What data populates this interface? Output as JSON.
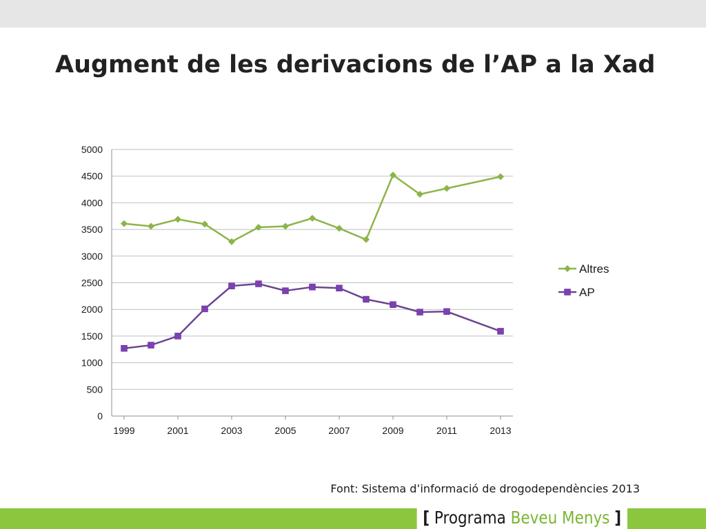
{
  "slide": {
    "title": "Augment de les derivacions de l’AP a la Xad",
    "source": "Font: Sistema d’informació de drogodependències 2013"
  },
  "logo": {
    "open_bracket": "[",
    "word1": "Programa",
    "word2": "Beveu Menys",
    "close_bracket": "]"
  },
  "colors": {
    "top_band": "#e6e6e6",
    "bottom_band": "#8cc63f",
    "altres": "#8db449",
    "ap": "#6b4594",
    "ap_marker": "#7e3fb5"
  },
  "chart_data": {
    "type": "line",
    "x": [
      1999,
      2000,
      2001,
      2002,
      2003,
      2004,
      2005,
      2006,
      2007,
      2008,
      2009,
      2010,
      2011,
      2013
    ],
    "x_ticks": [
      "1999",
      "2001",
      "2003",
      "2005",
      "2007",
      "2009",
      "2011",
      "2013"
    ],
    "y_ticks": [
      "0",
      "500",
      "1000",
      "1500",
      "2000",
      "2500",
      "3000",
      "3500",
      "4000",
      "4500",
      "5000"
    ],
    "ylim": [
      0,
      5000
    ],
    "grid": true,
    "legend_position": "right",
    "series": [
      {
        "name": "Altres",
        "marker": "diamond",
        "values": [
          3610,
          3560,
          3690,
          3600,
          3270,
          3540,
          3560,
          3710,
          3520,
          3310,
          4520,
          4160,
          4270,
          4490
        ]
      },
      {
        "name": "AP",
        "marker": "square",
        "values": [
          1270,
          1330,
          1500,
          2010,
          2440,
          2480,
          2350,
          2420,
          2400,
          2190,
          2090,
          1950,
          1960,
          1590
        ]
      }
    ]
  }
}
